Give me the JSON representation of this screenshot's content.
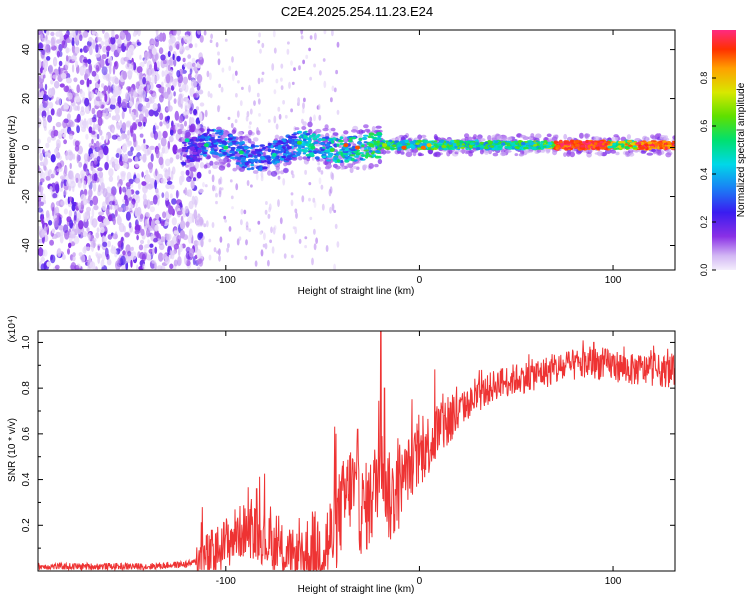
{
  "title": "C2E4.2025.254.11.23.E24",
  "chart_data": [
    {
      "type": "heatmap",
      "title": "C2E4.2025.254.11.23.E24",
      "xlabel": "Height of straight line (km)",
      "ylabel": "Frequency (Hz)",
      "xlim": [
        -197,
        132
      ],
      "ylim": [
        -50,
        48
      ],
      "xticks": [
        -100,
        0,
        100
      ],
      "xtick_labels": [
        "-100",
        "0",
        "100"
      ],
      "yticks": [
        -40,
        -20,
        0,
        20,
        40
      ],
      "ytick_labels": [
        "-40",
        "-20",
        "0",
        "20",
        "40"
      ],
      "colorbar": {
        "label": "Normalized spectral amplitude",
        "range": [
          0.0,
          1.0
        ],
        "ticks": [
          0.0,
          0.2,
          0.4,
          0.6,
          0.8
        ],
        "tick_labels": [
          "0.0",
          "0.2",
          "0.4",
          "0.6",
          "0.8"
        ]
      },
      "description_points": [
        {
          "x": -197,
          "center_freq": 0,
          "amp": 0.1
        },
        {
          "x": -115,
          "center_freq": 0,
          "amp": 0.25
        },
        {
          "x": -110,
          "center_freq": 1,
          "amp": 0.35
        },
        {
          "x": -90,
          "center_freq": -2,
          "amp": 0.35
        },
        {
          "x": -70,
          "center_freq": -3,
          "amp": 0.35
        },
        {
          "x": -60,
          "center_freq": 1,
          "amp": 0.45
        },
        {
          "x": -40,
          "center_freq": -1,
          "amp": 0.5
        },
        {
          "x": -20,
          "center_freq": 1,
          "amp": 0.55
        },
        {
          "x": 0,
          "center_freq": 1,
          "amp": 0.6
        },
        {
          "x": 20,
          "center_freq": 1,
          "amp": 0.6
        },
        {
          "x": 40,
          "center_freq": 1,
          "amp": 0.55
        },
        {
          "x": 60,
          "center_freq": 1,
          "amp": 0.6
        },
        {
          "x": 80,
          "center_freq": 1,
          "amp": 0.9
        },
        {
          "x": 100,
          "center_freq": 1,
          "amp": 0.8
        },
        {
          "x": 132,
          "center_freq": 1,
          "amp": 0.85
        }
      ]
    },
    {
      "type": "line",
      "title": "",
      "xlabel": "Height of straight line (km)",
      "ylabel": "SNR (10 * v/v)",
      "scale_label": "(x10⁴)",
      "xlim": [
        -197,
        132
      ],
      "ylim": [
        0,
        1.05
      ],
      "xticks": [
        -100,
        0,
        100
      ],
      "xtick_labels": [
        "-100",
        "0",
        "100"
      ],
      "yticks": [
        0.2,
        0.4,
        0.6,
        0.8,
        1.0
      ],
      "ytick_labels": [
        "0.2",
        "0.4",
        "0.6",
        "0.8",
        "1.0"
      ],
      "color": "#ee3333",
      "series": [
        {
          "name": "SNR",
          "x": [
            -197,
            -180,
            -160,
            -140,
            -120,
            -110,
            -105,
            -100,
            -95,
            -90,
            -85,
            -80,
            -75,
            -70,
            -65,
            -60,
            -55,
            -50,
            -45,
            -40,
            -35,
            -30,
            -25,
            -22,
            -20,
            -18,
            -15,
            -10,
            -5,
            0,
            5,
            10,
            20,
            30,
            40,
            50,
            60,
            70,
            80,
            90,
            100,
            110,
            120,
            132
          ],
          "y": [
            0.02,
            0.02,
            0.02,
            0.02,
            0.03,
            0.05,
            0.08,
            0.12,
            0.16,
            0.18,
            0.17,
            0.14,
            0.1,
            0.08,
            0.06,
            0.05,
            0.06,
            0.1,
            0.15,
            0.28,
            0.38,
            0.26,
            0.3,
            0.4,
            0.55,
            0.42,
            0.3,
            0.38,
            0.46,
            0.5,
            0.56,
            0.62,
            0.7,
            0.76,
            0.82,
            0.84,
            0.86,
            0.88,
            0.9,
            0.91,
            0.9,
            0.88,
            0.88,
            0.87
          ]
        }
      ],
      "spikes": [
        {
          "x": -84,
          "y": 0.36
        },
        {
          "x": -32,
          "y": 0.62
        },
        {
          "x": -20,
          "y": 1.05
        },
        {
          "x": -18,
          "y": 0.8
        },
        {
          "x": 90,
          "y": 1.0
        }
      ]
    }
  ]
}
